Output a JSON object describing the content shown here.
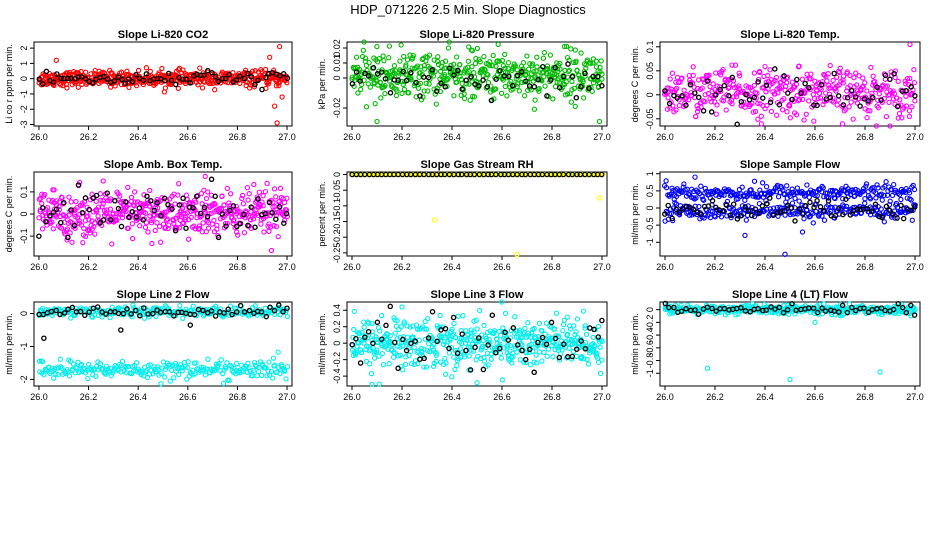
{
  "title": "HDP_071226  2.5 Min. Slope Diagnostics",
  "chart_data": [
    {
      "type": "scatter",
      "title": "Slope Li-820 CO2",
      "ylabel": "Li co r ppm per min.",
      "xlim": [
        25.98,
        27.02
      ],
      "ylim": [
        -3.1,
        2.4
      ],
      "yticks": [
        -3,
        -2,
        -1,
        0,
        1,
        2
      ],
      "xticks": [
        26.0,
        26.2,
        26.4,
        26.6,
        26.8,
        27.0
      ],
      "colors": {
        "main": "#ff0000",
        "overlay": "#000000"
      },
      "series": [
        {
          "color": "red",
          "mean": 0.0,
          "sd": 0.25,
          "n": 460,
          "outliers": [
            [
              26.07,
              1.2
            ],
            [
              26.93,
              1.4
            ],
            [
              26.97,
              2.1
            ],
            [
              26.95,
              -1.8
            ],
            [
              26.96,
              -2.9
            ],
            [
              26.98,
              -1.2
            ]
          ]
        },
        {
          "color": "black",
          "mean": 0.0,
          "sd": 0.25,
          "n": 70
        }
      ]
    },
    {
      "type": "scatter",
      "title": "Slope Li-820 Pressure",
      "ylabel": "kPa per min.",
      "xlim": [
        25.98,
        27.02
      ],
      "ylim": [
        -0.032,
        0.024
      ],
      "yticks": [
        -0.02,
        0.0,
        0.01,
        0.02
      ],
      "xticks": [
        26.0,
        26.2,
        26.4,
        26.6,
        26.8,
        27.0
      ],
      "colors": {
        "main": "#00bb00",
        "overlay": "#000000"
      },
      "series": [
        {
          "color": "green",
          "mean": 0.002,
          "sd": 0.008,
          "n": 480,
          "outliers": [
            [
              26.1,
              -0.029
            ],
            [
              26.99,
              -0.029
            ],
            [
              26.85,
              0.021
            ]
          ]
        },
        {
          "color": "black",
          "mean": -0.004,
          "sd": 0.006,
          "n": 60
        }
      ]
    },
    {
      "type": "scatter",
      "title": "Slope Li-820 Temp.",
      "ylabel": "degrees C per min.",
      "xlim": [
        25.98,
        27.02
      ],
      "ylim": [
        -0.065,
        0.11
      ],
      "yticks": [
        -0.05,
        0.0,
        0.05,
        0.1
      ],
      "xticks": [
        26.0,
        26.2,
        26.4,
        26.6,
        26.8,
        27.0
      ],
      "colors": {
        "main": "#ff00ff",
        "overlay": "#000000"
      },
      "series": [
        {
          "color": "magenta",
          "mean": 0.005,
          "sd": 0.025,
          "n": 420,
          "outliers": [
            [
              26.98,
              0.105
            ]
          ]
        },
        {
          "color": "black",
          "mean": 0.003,
          "sd": 0.022,
          "n": 60
        }
      ]
    },
    {
      "type": "scatter",
      "title": "Slope Amb. Box Temp.",
      "ylabel": "degrees C per min.",
      "xlim": [
        25.98,
        27.02
      ],
      "ylim": [
        -0.19,
        0.19
      ],
      "yticks": [
        -0.1,
        0.0,
        0.1
      ],
      "xticks": [
        26.0,
        26.2,
        26.4,
        26.6,
        26.8,
        27.0
      ],
      "colors": {
        "main": "#ff00ff",
        "overlay": "#000000"
      },
      "series": [
        {
          "color": "magenta",
          "mean": 0.0,
          "sd": 0.055,
          "n": 500,
          "outliers": [
            [
              26.67,
              0.17
            ]
          ]
        },
        {
          "color": "black",
          "mean": 0.0,
          "sd": 0.05,
          "n": 70
        }
      ]
    },
    {
      "type": "scatter",
      "title": "Slope Gas Stream RH",
      "ylabel": "percent per min.",
      "xlim": [
        25.98,
        27.02
      ],
      "ylim": [
        -0.26,
        0.008
      ],
      "yticks": [
        -0.25,
        -0.2,
        -0.15,
        -0.1,
        -0.05,
        0.0
      ],
      "xticks": [
        26.0,
        26.2,
        26.4,
        26.6,
        26.8,
        27.0
      ],
      "colors": {
        "main": "#ffff00",
        "overlay": "#000000"
      },
      "series": [
        {
          "color": "yellow",
          "mean": 0.0,
          "sd": 0.0,
          "n": 200,
          "outliers": [
            [
              26.33,
              -0.145
            ],
            [
              26.66,
              -0.255
            ],
            [
              26.99,
              -0.075
            ]
          ]
        },
        {
          "color": "black",
          "mean": 0.0,
          "sd": 0.0,
          "n": 60
        }
      ]
    },
    {
      "type": "scatter",
      "title": "Slope Sample Flow",
      "ylabel": "ml/min per min.",
      "xlim": [
        25.98,
        27.02
      ],
      "ylim": [
        -1.4,
        1.05
      ],
      "yticks": [
        -1.0,
        -0.5,
        0.0,
        0.5,
        1.0
      ],
      "xticks": [
        26.0,
        26.2,
        26.4,
        26.6,
        26.8,
        27.0
      ],
      "colors": {
        "main": "#0000ff",
        "overlay": "#000000"
      },
      "series": [
        {
          "color": "blue",
          "mean": 0.45,
          "sd": 0.12,
          "n": 260,
          "outliers": [
            [
              26.12,
              0.9
            ],
            [
              26.48,
              -1.35
            ],
            [
              26.32,
              -0.8
            ],
            [
              26.55,
              -0.7
            ]
          ]
        },
        {
          "color": "blue",
          "mean": -0.1,
          "sd": 0.12,
          "n": 240
        },
        {
          "color": "black",
          "mean": -0.05,
          "sd": 0.15,
          "n": 70
        }
      ]
    },
    {
      "type": "scatter",
      "title": "Slope Line 2 Flow",
      "ylabel": "ml/min per min.",
      "xlim": [
        25.98,
        27.02
      ],
      "ylim": [
        -2.2,
        0.35
      ],
      "yticks": [
        -2,
        -1,
        0
      ],
      "xticks": [
        26.0,
        26.2,
        26.4,
        26.6,
        26.8,
        27.0
      ],
      "colors": {
        "main": "#00eeee",
        "overlay": "#000000"
      },
      "series": [
        {
          "color": "cyan",
          "mean": 0.05,
          "sd": 0.08,
          "n": 260
        },
        {
          "color": "cyan",
          "mean": -1.7,
          "sd": 0.14,
          "n": 250
        },
        {
          "color": "black",
          "mean": 0.05,
          "sd": 0.08,
          "n": 60,
          "outliers": [
            [
              26.02,
              -0.75
            ],
            [
              26.33,
              -0.5
            ],
            [
              26.61,
              -0.35
            ]
          ]
        }
      ]
    },
    {
      "type": "scatter",
      "title": "Slope Line 3 Flow",
      "ylabel": "ml/min per min.",
      "xlim": [
        25.98,
        27.02
      ],
      "ylim": [
        -0.52,
        0.5
      ],
      "yticks": [
        -0.4,
        -0.2,
        0.0,
        0.2,
        0.4
      ],
      "xticks": [
        26.0,
        26.2,
        26.4,
        26.6,
        26.8,
        27.0
      ],
      "colors": {
        "main": "#00eeee",
        "overlay": "#000000"
      },
      "series": [
        {
          "color": "cyan",
          "mean": 0.0,
          "sd": 0.16,
          "n": 500,
          "outliers": [
            [
              26.08,
              -0.5
            ],
            [
              26.5,
              -0.48
            ],
            [
              26.2,
              0.44
            ]
          ]
        },
        {
          "color": "black",
          "mean": 0.0,
          "sd": 0.15,
          "n": 60
        }
      ]
    },
    {
      "type": "scatter",
      "title": "Slope Line 4 (LT) Flow",
      "ylabel": "ml/min per min.",
      "xlim": [
        25.98,
        27.02
      ],
      "ylim": [
        -1.2,
        0.12
      ],
      "yticks": [
        -1.0,
        -0.8,
        -0.6,
        -0.4,
        -0.2,
        0.0
      ],
      "xticks": [
        26.0,
        26.2,
        26.4,
        26.6,
        26.8,
        27.0
      ],
      "colors": {
        "main": "#00eeee",
        "overlay": "#000000"
      },
      "series": [
        {
          "color": "cyan",
          "mean": 0.0,
          "sd": 0.035,
          "n": 380,
          "outliers": [
            [
              26.17,
              -0.92
            ],
            [
              26.5,
              -1.1
            ],
            [
              26.86,
              -0.98
            ],
            [
              26.6,
              -0.2
            ]
          ]
        },
        {
          "color": "black",
          "mean": 0.0,
          "sd": 0.035,
          "n": 60
        }
      ]
    }
  ]
}
